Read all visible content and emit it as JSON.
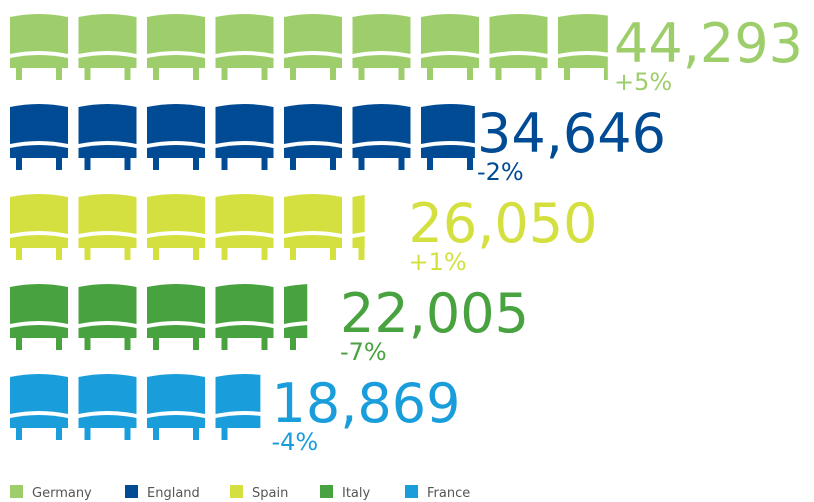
{
  "chart_data": {
    "type": "pictogram",
    "xlim": [
      0,
      45000
    ],
    "series": [
      {
        "name": "Germany",
        "color": "#9dce6b",
        "value": 44293,
        "value_label": "44,293",
        "change": 5,
        "change_label": "+5%"
      },
      {
        "name": "England",
        "color": "#004b93",
        "value": 34646,
        "value_label": "34,646",
        "change": -2,
        "change_label": "-2%"
      },
      {
        "name": "Spain",
        "color": "#d4e03f",
        "value": 26050,
        "value_label": "26,050",
        "change": 1,
        "change_label": "+1%"
      },
      {
        "name": "Italy",
        "color": "#48a23f",
        "value": 22005,
        "value_label": "22,005",
        "change": -7,
        "change_label": "-7%"
      },
      {
        "name": "France",
        "color": "#1a9ddb",
        "value": 18869,
        "value_label": "18,869",
        "change": -4,
        "change_label": "-4%"
      }
    ]
  }
}
